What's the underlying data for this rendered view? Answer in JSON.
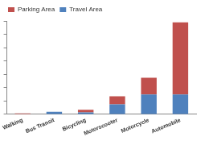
{
  "chart_data": {
    "type": "bar",
    "stacked": true,
    "categories": [
      "Walking",
      "Bus Transit",
      "Bicycling",
      "Motorscooter",
      "Motorcycle",
      "Automobile"
    ],
    "series": [
      {
        "name": "Travel Area",
        "color": "#4f81bd",
        "values": [
          0.5,
          4,
          3,
          15,
          30,
          30
        ]
      },
      {
        "name": "Parking Area",
        "color": "#c0504d",
        "values": [
          1,
          0,
          4,
          12,
          25,
          108
        ]
      }
    ],
    "ylim": [
      0,
      140
    ],
    "yticks": [
      0,
      20,
      40,
      60,
      80,
      100,
      120,
      140
    ],
    "grid": false,
    "legend": "upper left",
    "tick_labels": "x"
  }
}
